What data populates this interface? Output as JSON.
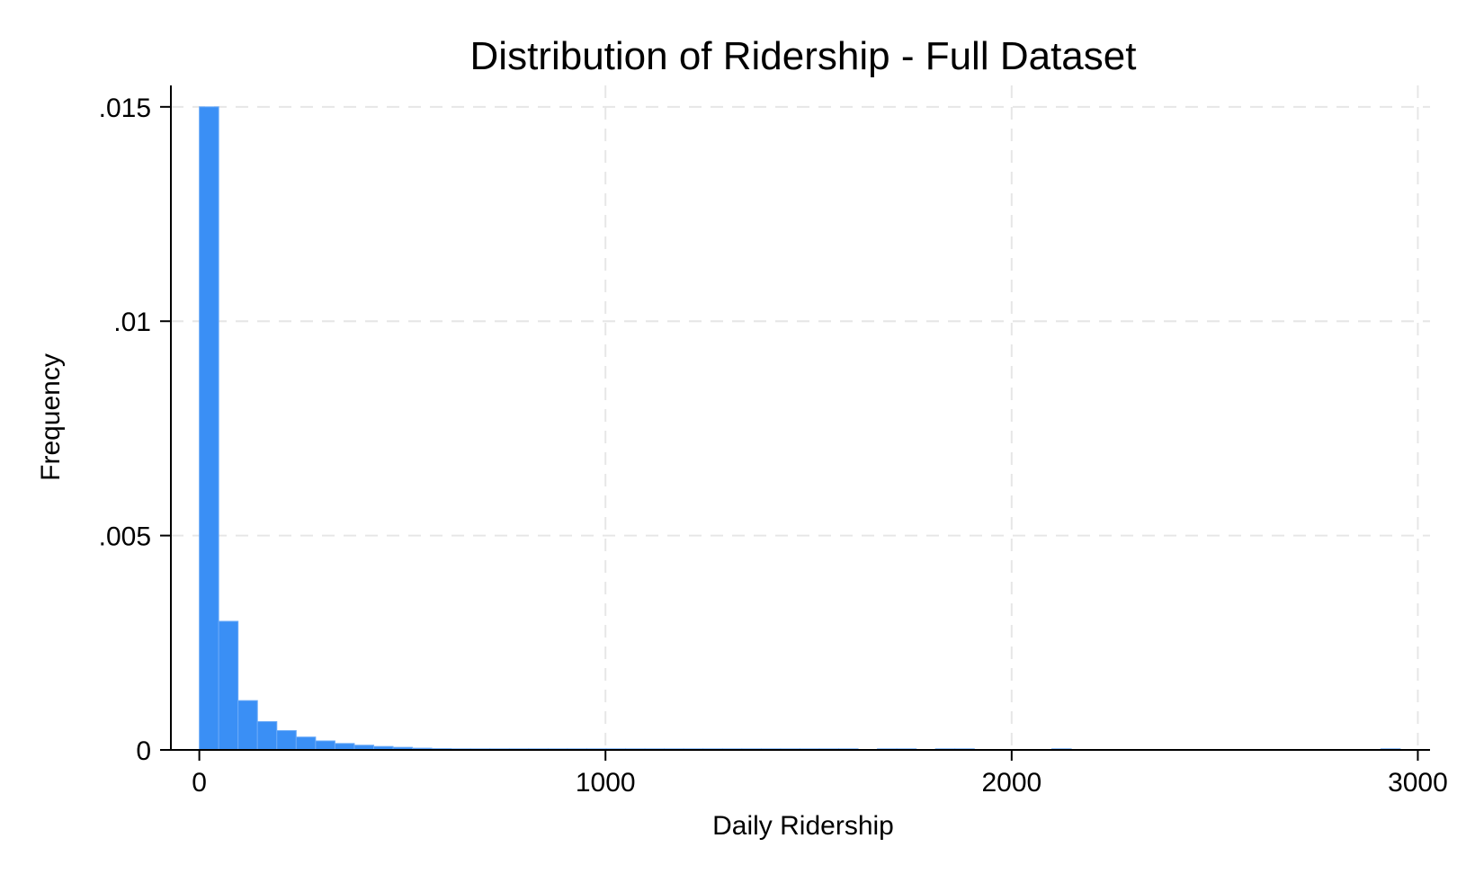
{
  "chart_data": {
    "type": "bar",
    "title": "Distribution of Ridership - Full Dataset",
    "xlabel": "Daily Ridership",
    "ylabel": "Frequency",
    "xlim": [
      -70,
      3030
    ],
    "ylim": [
      0,
      0.0155
    ],
    "x_ticks": [
      {
        "value": 0,
        "label": "0"
      },
      {
        "value": 1000,
        "label": "1000"
      },
      {
        "value": 2000,
        "label": "2000"
      },
      {
        "value": 3000,
        "label": "3000"
      }
    ],
    "y_ticks": [
      {
        "value": 0,
        "label": "0"
      },
      {
        "value": 0.005,
        "label": ".005"
      },
      {
        "value": 0.01,
        "label": ".01"
      },
      {
        "value": 0.015,
        "label": ".015"
      }
    ],
    "grid": true,
    "bin_width": 47.7,
    "bins": [
      {
        "start": 0,
        "value": 0.015
      },
      {
        "start": 47.7,
        "value": 0.003
      },
      {
        "start": 95.4,
        "value": 0.00115
      },
      {
        "start": 143.1,
        "value": 0.00066
      },
      {
        "start": 190.8,
        "value": 0.00045
      },
      {
        "start": 238.5,
        "value": 0.0003
      },
      {
        "start": 286.2,
        "value": 0.00021
      },
      {
        "start": 333.9,
        "value": 0.00015
      },
      {
        "start": 381.6,
        "value": 0.00011
      },
      {
        "start": 429.3,
        "value": 8e-05
      },
      {
        "start": 477.0,
        "value": 6e-05
      },
      {
        "start": 524.7,
        "value": 4e-05
      },
      {
        "start": 572.4,
        "value": 3e-05
      },
      {
        "start": 620.1,
        "value": 2e-05
      },
      {
        "start": 667.8,
        "value": 1.5e-05
      },
      {
        "start": 715.5,
        "value": 1.2e-05
      },
      {
        "start": 763.2,
        "value": 1e-05
      },
      {
        "start": 810.9,
        "value": 8e-06
      },
      {
        "start": 858.6,
        "value": 6e-06
      },
      {
        "start": 906.3,
        "value": 5e-06
      },
      {
        "start": 954.0,
        "value": 4e-06
      },
      {
        "start": 1001.7,
        "value": 4e-06
      },
      {
        "start": 1049.4,
        "value": 3e-06
      },
      {
        "start": 1097.1,
        "value": 3e-06
      },
      {
        "start": 1144.8,
        "value": 3e-06
      },
      {
        "start": 1192.5,
        "value": 2e-06
      },
      {
        "start": 1240.2,
        "value": 2e-06
      },
      {
        "start": 1287.9,
        "value": 2e-06
      },
      {
        "start": 1335.6,
        "value": 2e-06
      },
      {
        "start": 1383.3,
        "value": 2e-06
      },
      {
        "start": 1431.0,
        "value": 2e-06
      },
      {
        "start": 1478.7,
        "value": 2e-06
      },
      {
        "start": 1526.4,
        "value": 1e-06
      },
      {
        "start": 1574.1,
        "value": 1e-06
      },
      {
        "start": 1669.5,
        "value": 1e-06
      },
      {
        "start": 1717.2,
        "value": 1e-06
      },
      {
        "start": 1812.6,
        "value": 1e-06
      },
      {
        "start": 1860.3,
        "value": 1e-06
      },
      {
        "start": 2099.0,
        "value": 1e-06
      },
      {
        "start": 2909.0,
        "value": 1e-06
      }
    ],
    "bar_color": "#3a8ff5",
    "bar_edge_color": "#6aaaf8",
    "grid_color": "#e6e6e6"
  }
}
